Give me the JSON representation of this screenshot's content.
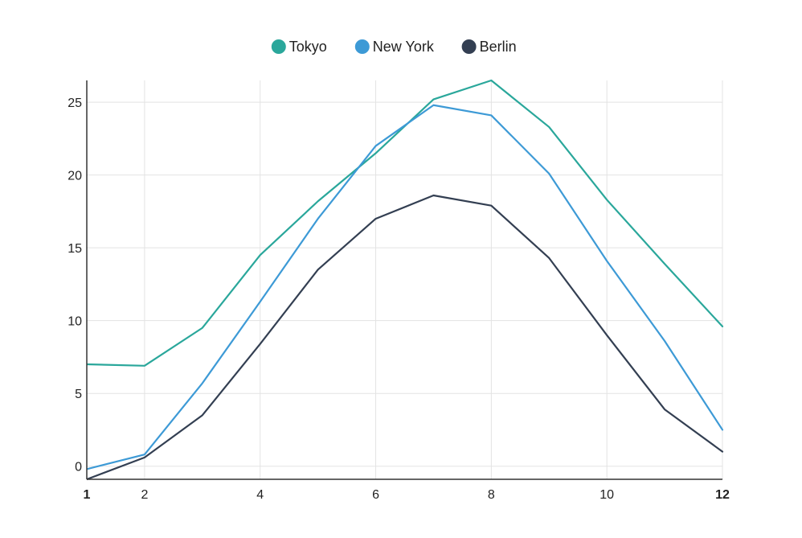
{
  "chart_data": {
    "type": "line",
    "x": [
      1,
      2,
      3,
      4,
      5,
      6,
      7,
      8,
      9,
      10,
      11,
      12
    ],
    "series": [
      {
        "name": "Tokyo",
        "color": "#2aa79b",
        "values": [
          7.0,
          6.9,
          9.5,
          14.5,
          18.2,
          21.5,
          25.2,
          26.5,
          23.3,
          18.3,
          13.9,
          9.6
        ]
      },
      {
        "name": "New York",
        "color": "#3d9ad6",
        "values": [
          -0.2,
          0.8,
          5.7,
          11.3,
          17.0,
          22.0,
          24.8,
          24.1,
          20.1,
          14.1,
          8.6,
          2.5
        ]
      },
      {
        "name": "Berlin",
        "color": "#333f52",
        "values": [
          -0.9,
          0.6,
          3.5,
          8.4,
          13.5,
          17.0,
          18.6,
          17.9,
          14.3,
          9.0,
          3.9,
          1.0
        ]
      }
    ],
    "xlim": [
      1,
      12
    ],
    "ylim": [
      -0.9,
      26.5
    ],
    "x_ticks": [
      1,
      2,
      4,
      6,
      8,
      10,
      12
    ],
    "x_ticks_bold": [
      1,
      12
    ],
    "y_ticks": [
      0,
      5,
      10,
      15,
      20,
      25
    ],
    "grid": true,
    "legend_position": "top-center",
    "title": "",
    "xlabel": "",
    "ylabel": ""
  }
}
